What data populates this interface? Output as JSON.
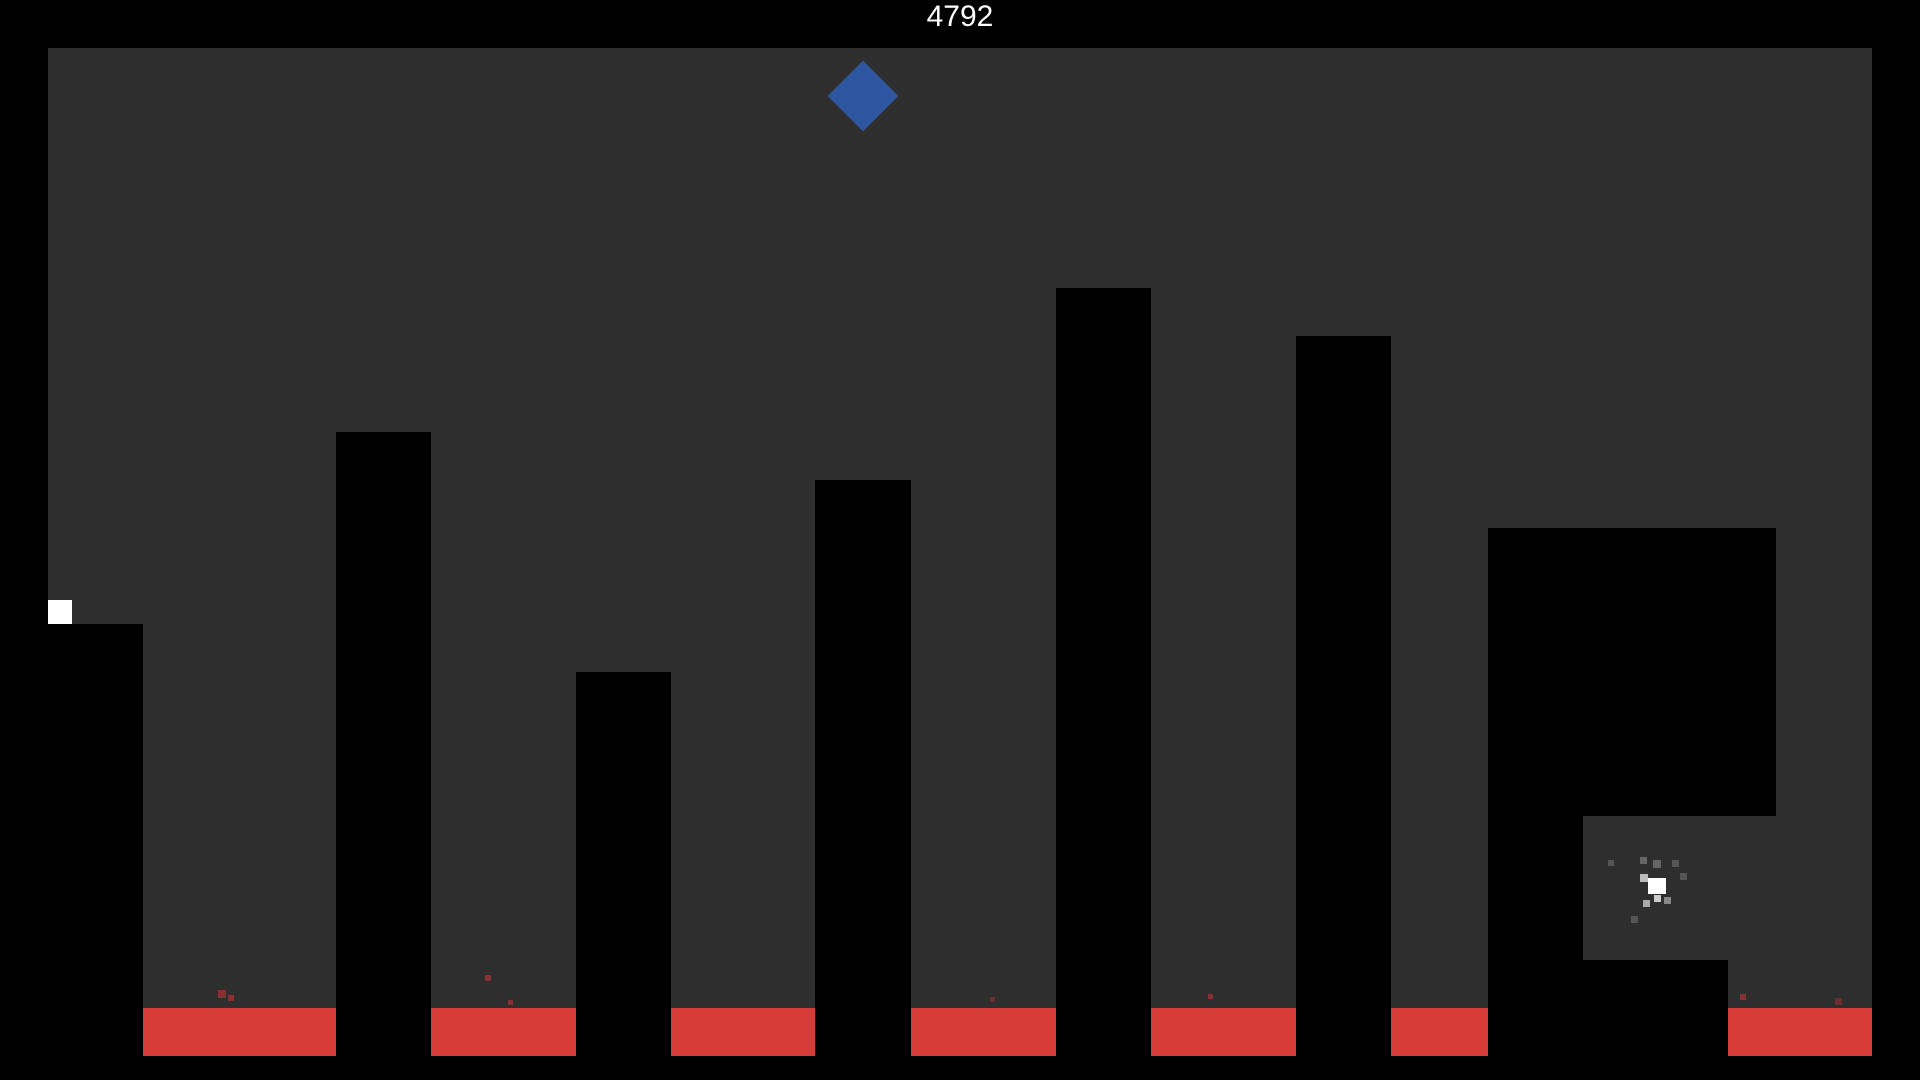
{
  "hud": {
    "score": "4792"
  },
  "colors": {
    "background": "#2e2e2e",
    "wall": "#000000",
    "lava": "#d63b38",
    "goal": "#2f56a0",
    "player": "#ffffff"
  },
  "icons": {
    "goal": "blue-diamond",
    "player": "white-square"
  }
}
